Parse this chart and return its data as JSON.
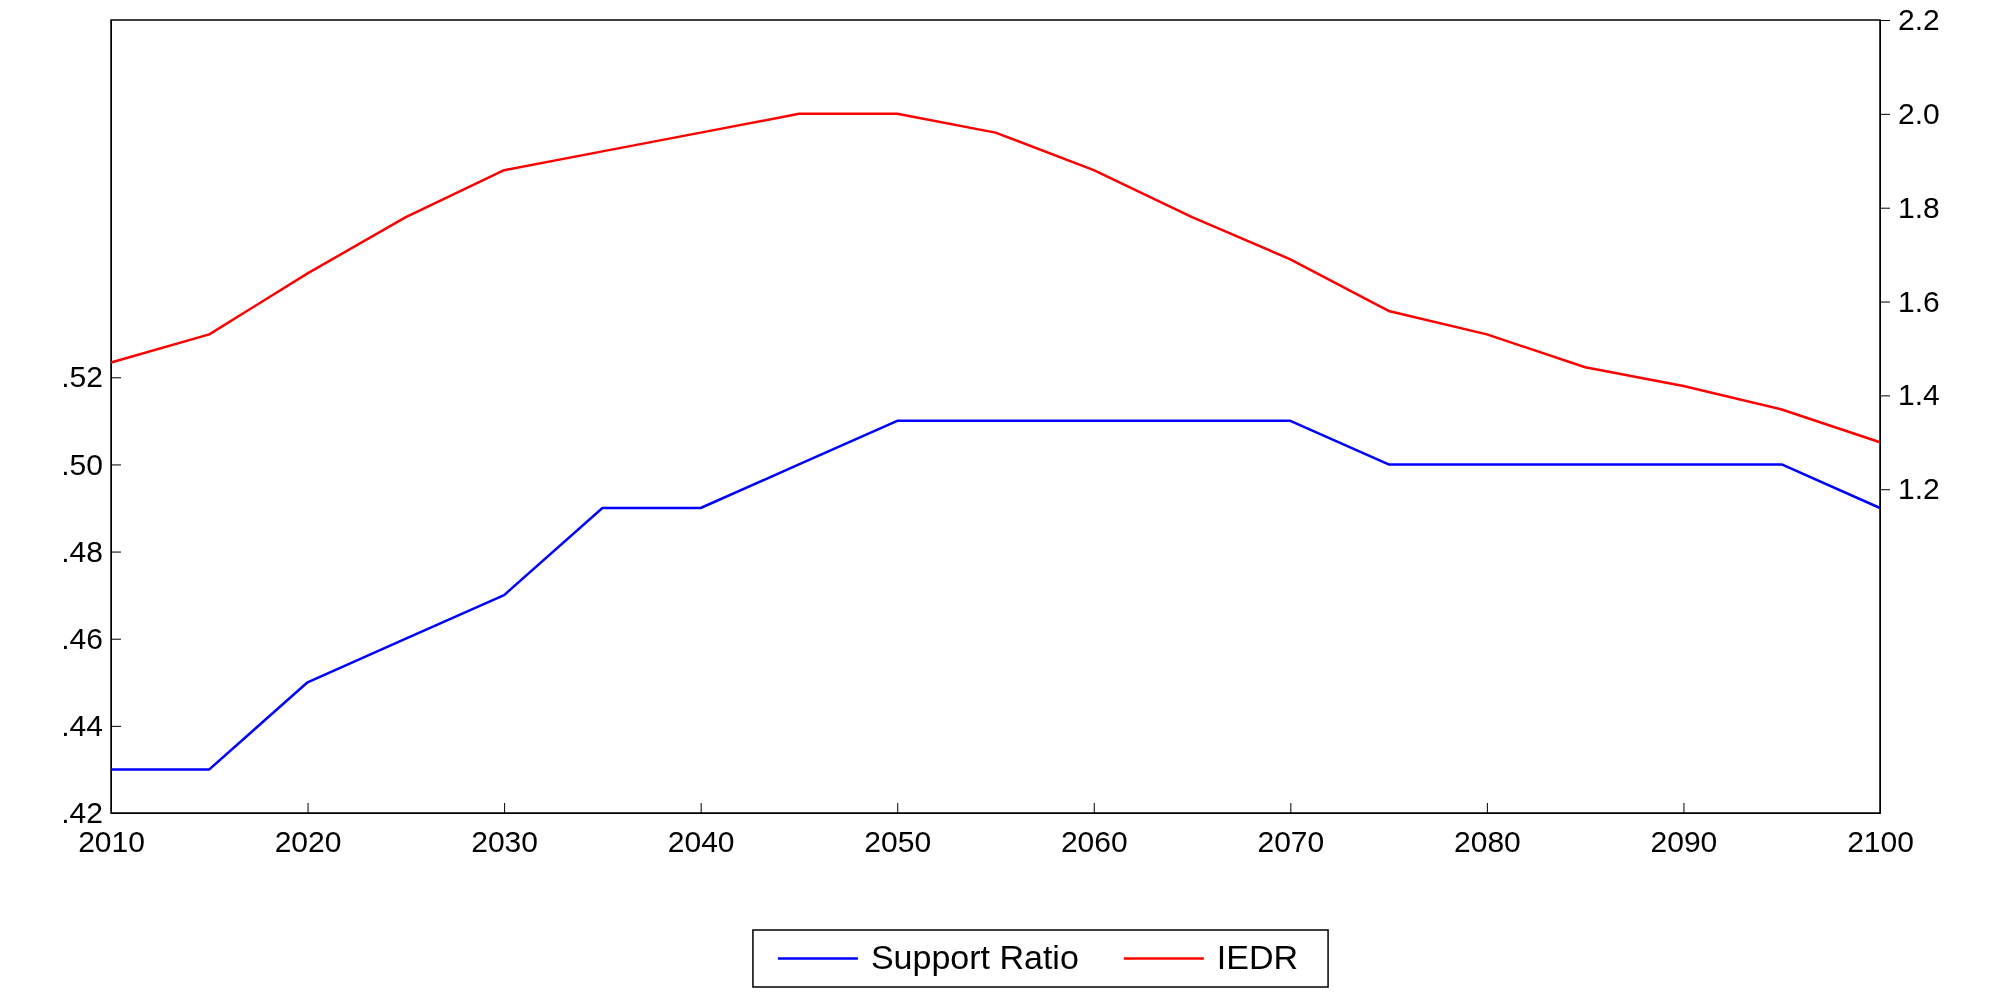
{
  "chart_data": {
    "type": "line",
    "x": [
      2010,
      2015,
      2020,
      2025,
      2030,
      2035,
      2040,
      2045,
      2050,
      2055,
      2060,
      2065,
      2070,
      2075,
      2080,
      2085,
      2090,
      2095,
      2100
    ],
    "series": [
      {
        "name": "Support Ratio",
        "color": "#0000ff",
        "values": [
          0.43,
          0.43,
          0.45,
          0.46,
          0.47,
          0.49,
          0.49,
          0.5,
          0.51,
          0.51,
          0.51,
          0.51,
          0.51,
          0.5,
          0.5,
          0.5,
          0.5,
          0.5,
          0.49
        ]
      },
      {
        "name": "IEDR",
        "color": "#ff0000",
        "axis": "y2",
        "values": [
          1.47,
          1.53,
          1.66,
          1.78,
          1.88,
          1.92,
          1.96,
          2.0,
          2.0,
          1.96,
          1.88,
          1.78,
          1.69,
          1.58,
          1.53,
          1.46,
          1.42,
          1.37,
          1.3
        ]
      }
    ],
    "xlim": [
      2010,
      2100
    ],
    "xticks": [
      2010,
      2020,
      2030,
      2040,
      2050,
      2060,
      2070,
      2080,
      2090,
      2100
    ],
    "ylim": [
      0.42,
      0.602
    ],
    "yticks": [
      {
        "value": 0.42,
        "label": ".42"
      },
      {
        "value": 0.44,
        "label": ".44"
      },
      {
        "value": 0.46,
        "label": ".46"
      },
      {
        "value": 0.48,
        "label": ".48"
      },
      {
        "value": 0.5,
        "label": ".50"
      },
      {
        "value": 0.52,
        "label": ".52"
      }
    ],
    "y2lim": [
      0.51,
      2.2
    ],
    "y2ticks": [
      {
        "value": 1.2,
        "label": "1.2"
      },
      {
        "value": 1.4,
        "label": "1.4"
      },
      {
        "value": 1.6,
        "label": "1.6"
      },
      {
        "value": 1.8,
        "label": "1.8"
      },
      {
        "value": 2.0,
        "label": "2.0"
      },
      {
        "value": 2.2,
        "label": "2.2"
      }
    ],
    "legend": "bottom",
    "grid": false,
    "line_style": "solid",
    "marker": "none"
  }
}
